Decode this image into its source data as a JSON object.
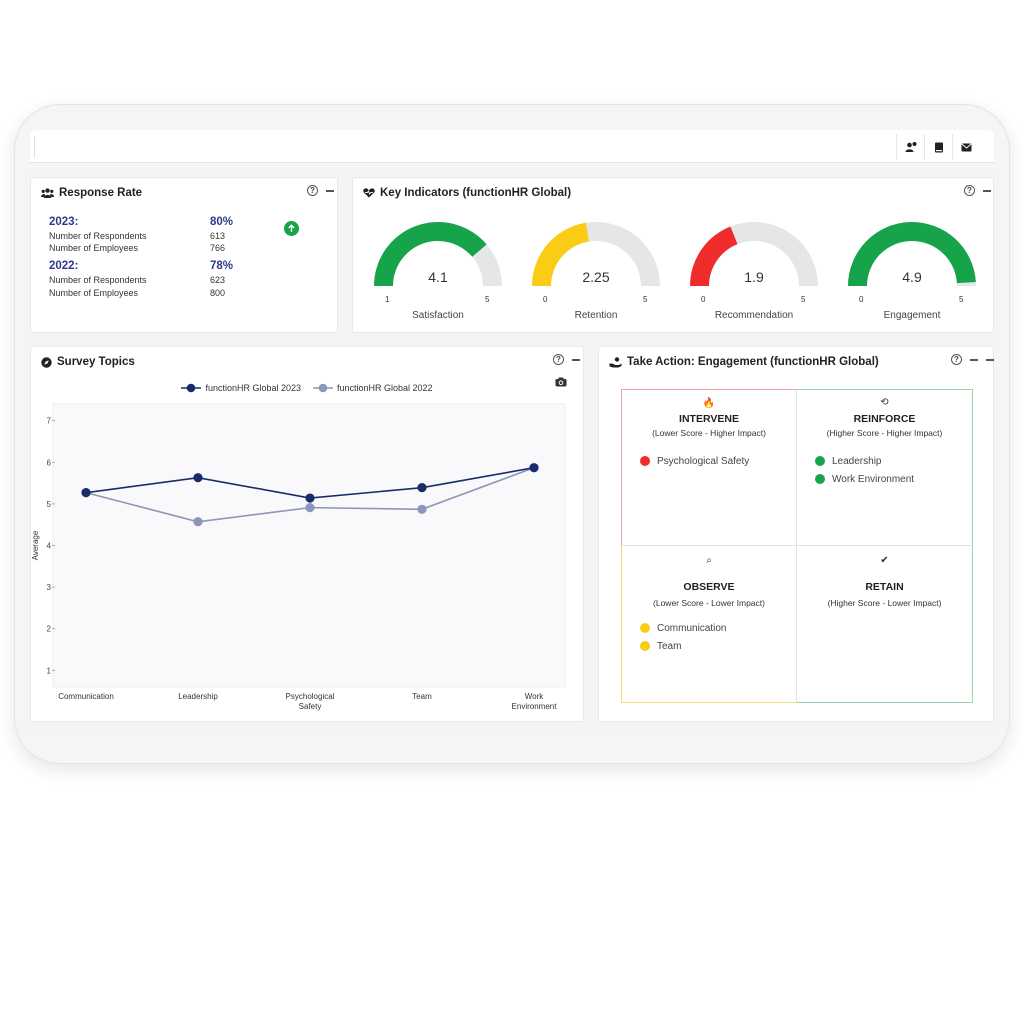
{
  "header": {
    "icons": [
      "user-pin-icon",
      "book-icon",
      "mail-icon"
    ]
  },
  "response_rate": {
    "title": "Response Rate",
    "years": [
      {
        "year": "2023:",
        "pct": "80%",
        "rows": [
          {
            "label": "Number of Respondents",
            "value": "613"
          },
          {
            "label": "Number of Employees",
            "value": "766"
          }
        ]
      },
      {
        "year": "2022:",
        "pct": "78%",
        "rows": [
          {
            "label": "Number of Respondents",
            "value": "623"
          },
          {
            "label": "Number of Employees",
            "value": "800"
          }
        ]
      }
    ],
    "trend": "up"
  },
  "key_indicators": {
    "title": "Key Indicators (functionHR Global)",
    "gauges": [
      {
        "name": "Satisfaction",
        "value": 4.1,
        "display": "4.1",
        "min": 1,
        "max": 5,
        "min_label": "1",
        "max_label": "5",
        "color": "#16a34a"
      },
      {
        "name": "Retention",
        "value": 2.25,
        "display": "2.25",
        "min": 0,
        "max": 5,
        "min_label": "0",
        "max_label": "5",
        "color": "#facc15"
      },
      {
        "name": "Recommendation",
        "value": 1.9,
        "display": "1.9",
        "min": 0,
        "max": 5,
        "min_label": "0",
        "max_label": "5",
        "color": "#ef2b2b"
      },
      {
        "name": "Engagement",
        "value": 4.9,
        "display": "4.9",
        "min": 0,
        "max": 5,
        "min_label": "0",
        "max_label": "5",
        "color": "#16a34a"
      }
    ]
  },
  "survey_topics": {
    "title": "Survey Topics",
    "chart_data": {
      "type": "line",
      "categories": [
        "Communication",
        "Leadership",
        "Psychological Safety",
        "Team",
        "Work Environment"
      ],
      "series": [
        {
          "name": "functionHR Global 2023",
          "values": [
            5.27,
            5.63,
            5.14,
            5.39,
            5.87
          ],
          "color": "#1b2a6b"
        },
        {
          "name": "functionHR Global 2022",
          "values": [
            5.27,
            4.57,
            4.91,
            4.87,
            5.87
          ],
          "color": "#8c97b8"
        }
      ],
      "ylabel": "Average",
      "xlabel": "",
      "ylim": [
        0.6,
        7.4
      ],
      "yticks": [
        1,
        2,
        3,
        4,
        5,
        6,
        7
      ],
      "yticks_labels": [
        "1",
        "2",
        "3",
        "4",
        "5",
        "6",
        "7"
      ],
      "grid": false,
      "legend": "top-center"
    }
  },
  "take_action": {
    "title": "Take Action: Engagement (functionHR Global)",
    "quadrants": [
      {
        "key": "intervene",
        "title": "INTERVENE",
        "subtitle": "(Lower Score - Higher Impact)",
        "icon": "fire-icon",
        "glyph": "🔥",
        "items": [
          "Psychological Safety"
        ],
        "dot_color": "#ef2b2b",
        "border": "#f2a0a0"
      },
      {
        "key": "reinforce",
        "title": "REINFORCE",
        "subtitle": "(Higher Score - Higher Impact)",
        "icon": "refresh-icon",
        "glyph": "⟲",
        "items": [
          "Leadership",
          "Work Environment"
        ],
        "dot_color": "#16a34a",
        "border": "#9ad4a9"
      },
      {
        "key": "observe",
        "title": "OBSERVE",
        "subtitle": "(Lower Score - Lower Impact)",
        "icon": "magnifier-icon",
        "glyph": "⌕",
        "items": [
          "Communication",
          "Team"
        ],
        "dot_color": "#facc15",
        "border": "#f3e07a"
      },
      {
        "key": "retain",
        "title": "RETAIN",
        "subtitle": "(Higher Score - Lower Impact)",
        "icon": "check-icon",
        "glyph": "✔",
        "items": [],
        "dot_color": "#16a34a",
        "border": "#9ad4a9"
      }
    ]
  }
}
